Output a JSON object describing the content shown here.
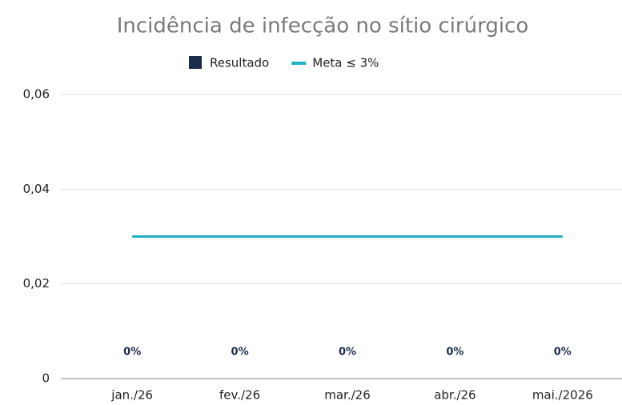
{
  "chart_data": {
    "type": "bar",
    "title": "Incidência de infecção no sítio cirúrgico",
    "categories": [
      "jan./26",
      "fev./26",
      "mar./26",
      "abr./26",
      "mai./2026"
    ],
    "series": [
      {
        "name": "Resultado",
        "color": "#1c2c4c",
        "values": [
          0,
          0,
          0,
          0,
          0
        ],
        "value_labels": [
          "0%",
          "0%",
          "0%",
          "0%",
          "0%"
        ]
      },
      {
        "name": "Meta ≤ 3%",
        "type": "line",
        "color": "#22aec4",
        "values": [
          0.03,
          0.03,
          0.03,
          0.03,
          0.03
        ]
      }
    ],
    "ylim": [
      0,
      0.06
    ],
    "yticks": [
      0,
      {
        "value": 0.02,
        "label": "0,02"
      },
      {
        "value": 0.04,
        "label": "0,04"
      },
      {
        "value": 0.06,
        "label": "0,06"
      }
    ],
    "grid": true,
    "legend": "top"
  }
}
